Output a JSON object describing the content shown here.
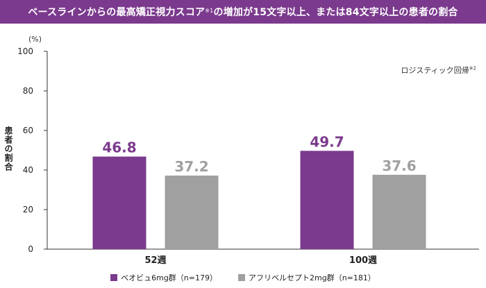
{
  "header": {
    "title": "ベースラインからの最高矯正視力スコア",
    "title_sup": "※1",
    "title_rest": "の増加が15文字以上、または84文字以上の患者の割合"
  },
  "note": {
    "text": "ロジスティック回帰",
    "sup": "※2"
  },
  "colors": {
    "primary": "#7b3a8d",
    "secondary": "#a0a0a0"
  },
  "chart_data": {
    "type": "bar",
    "categories": [
      "52週",
      "100週"
    ],
    "series": [
      {
        "name": "ベオビュ6mg群（n=179）",
        "values": [
          46.8,
          49.7
        ],
        "color": "#7b3a8d"
      },
      {
        "name": "アフリベルセプト2mg群（n=181）",
        "values": [
          37.2,
          37.6
        ],
        "color": "#a0a0a0"
      }
    ],
    "y_unit": "(%)",
    "ylabel": "患者の割合",
    "ylim": [
      0,
      100
    ],
    "yticks": [
      0,
      20,
      40,
      60,
      80,
      100
    ],
    "grid": false,
    "legend_position": "bottom",
    "data_labels": [
      "46.8",
      "37.2",
      "49.7",
      "37.6"
    ]
  }
}
